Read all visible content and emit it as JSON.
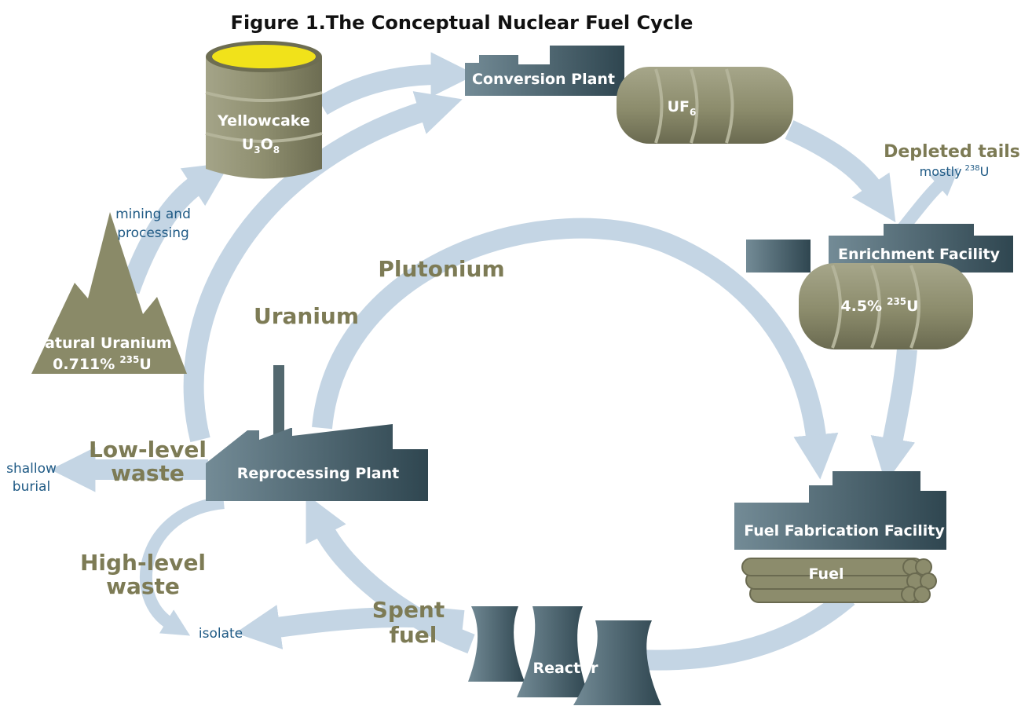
{
  "title": "Figure 1.The Conceptual Nuclear Fuel Cycle",
  "nodes": {
    "natural_uranium": {
      "label": "Natural Uranium",
      "assay": "0.711%",
      "isotope_mass": "235",
      "isotope": "U"
    },
    "yellowcake": {
      "label": "Yellowcake",
      "formula": [
        "U",
        "3",
        "O",
        "8"
      ]
    },
    "conversion": {
      "label": "Conversion Plant"
    },
    "uf6": {
      "formula": [
        "UF",
        "6"
      ]
    },
    "depleted_tails": {
      "label": "Depleted tails",
      "note": "mostly",
      "isotope_mass": "238",
      "isotope": "U"
    },
    "enrichment": {
      "label": "Enrichment Facility"
    },
    "enriched": {
      "assay": "4.5%",
      "isotope_mass": "235",
      "isotope": "U"
    },
    "fuel_fabrication": {
      "label": "Fuel Fabrication Facility"
    },
    "fuel": {
      "label": "Fuel"
    },
    "reactor": {
      "label": "Reactor"
    },
    "reprocessing": {
      "label": "Reprocessing Plant"
    },
    "shallow_burial": {
      "lines": [
        "shallow",
        "burial"
      ]
    },
    "isolate": {
      "label": "isolate"
    }
  },
  "flows": {
    "mining": [
      "mining and",
      "processing"
    ],
    "plutonium": "Plutonium",
    "uranium": "Uranium",
    "low_level_waste": [
      "Low-level",
      "waste"
    ],
    "high_level_waste": [
      "High-level",
      "waste"
    ],
    "spent_fuel": [
      "Spent",
      "fuel"
    ]
  }
}
